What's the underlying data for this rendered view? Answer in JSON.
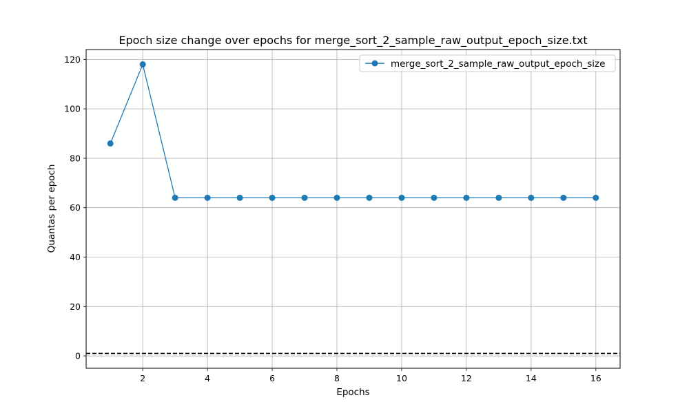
{
  "chart_data": {
    "type": "line",
    "title": "Epoch size change over epochs for merge_sort_2_sample_raw_output_epoch_size.txt",
    "xlabel": "Epochs",
    "ylabel": "Quantas per epoch",
    "xlim": [
      0.25,
      16.75
    ],
    "ylim": [
      -5,
      124
    ],
    "xticks": [
      2,
      4,
      6,
      8,
      10,
      12,
      14,
      16
    ],
    "yticks": [
      0,
      20,
      40,
      60,
      80,
      100,
      120
    ],
    "grid": true,
    "legend_position": "upper right",
    "series": [
      {
        "name": "merge_sort_2_sample_raw_output_epoch_size",
        "color": "#1f77b4",
        "marker": "circle",
        "x": [
          1,
          2,
          3,
          4,
          5,
          6,
          7,
          8,
          9,
          10,
          11,
          12,
          13,
          14,
          15,
          16
        ],
        "y": [
          86,
          118,
          64,
          64,
          64,
          64,
          64,
          64,
          64,
          64,
          64,
          64,
          64,
          64,
          64,
          64
        ]
      }
    ],
    "reference_line": {
      "y": 1,
      "color": "#000000",
      "style": "dashed"
    }
  }
}
